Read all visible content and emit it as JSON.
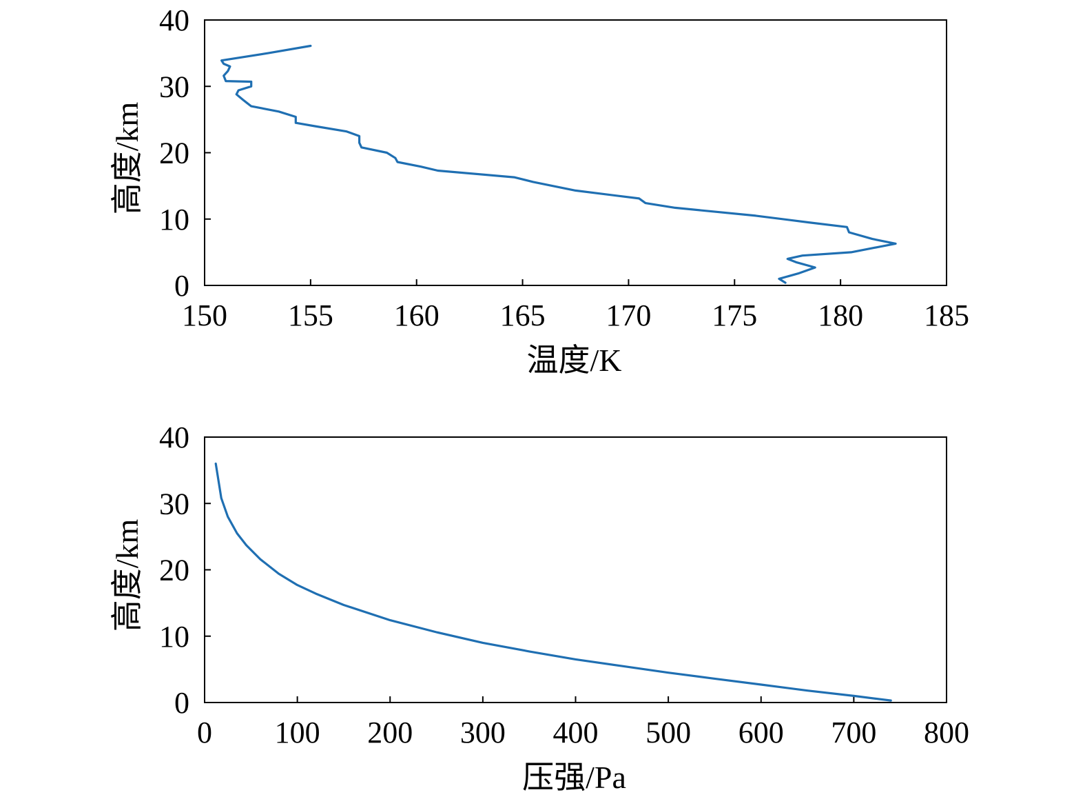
{
  "chart_data": [
    {
      "type": "line",
      "xlabel": "温度/K",
      "ylabel": "高度/km",
      "xlim": [
        150,
        185
      ],
      "ylim": [
        0,
        40
      ],
      "xticks": [
        150,
        155,
        160,
        165,
        170,
        175,
        180,
        185
      ],
      "yticks": [
        0,
        10,
        20,
        30,
        40
      ],
      "line_color": "#1f6fb2",
      "series": [
        {
          "x": [
            177.4,
            177.1,
            178.0,
            178.8,
            177.9,
            177.5,
            178.2,
            180.5,
            182.6,
            181.5,
            180.4,
            180.3,
            178.5,
            176.0,
            172.2,
            170.8,
            170.5,
            167.5,
            165.5,
            164.6,
            161.0,
            160.2,
            159.1,
            159.0,
            158.6,
            157.4,
            157.3,
            157.3,
            156.7,
            155.2,
            154.3,
            154.3,
            153.5,
            152.2,
            152.0,
            151.8,
            151.5,
            151.6,
            152.2,
            152.2,
            151.0,
            150.9,
            151.1,
            151.2,
            150.9,
            150.8,
            153.0,
            155.0
          ],
          "y": [
            0.4,
            1.0,
            1.8,
            2.7,
            3.5,
            4.0,
            4.5,
            5.0,
            6.3,
            7.0,
            8.0,
            8.8,
            9.5,
            10.5,
            11.7,
            12.4,
            13.1,
            14.3,
            15.6,
            16.3,
            17.3,
            17.9,
            18.6,
            19.2,
            20.0,
            20.8,
            21.5,
            22.5,
            23.2,
            24.0,
            24.5,
            25.4,
            26.2,
            27.0,
            27.5,
            28.0,
            28.8,
            29.4,
            30.0,
            30.7,
            30.8,
            31.6,
            32.3,
            33.0,
            33.4,
            33.9,
            35.0,
            36.1
          ]
        }
      ]
    },
    {
      "type": "line",
      "xlabel": "压强/Pa",
      "ylabel": "高度/km",
      "xlim": [
        0,
        800
      ],
      "ylim": [
        0,
        40
      ],
      "xticks": [
        0,
        100,
        200,
        300,
        400,
        500,
        600,
        700,
        800
      ],
      "yticks": [
        0,
        10,
        20,
        30,
        40
      ],
      "line_color": "#1f6fb2",
      "series": [
        {
          "x": [
            740,
            700,
            650,
            600,
            550,
            500,
            450,
            400,
            350,
            300,
            250,
            200,
            150,
            120,
            100,
            80,
            60,
            45,
            35,
            25,
            18,
            12
          ],
          "y": [
            0.3,
            1.0,
            1.8,
            2.7,
            3.6,
            4.5,
            5.5,
            6.5,
            7.7,
            9.0,
            10.6,
            12.4,
            14.7,
            16.4,
            17.7,
            19.4,
            21.6,
            23.7,
            25.5,
            28.0,
            30.8,
            36.0
          ]
        }
      ]
    }
  ]
}
